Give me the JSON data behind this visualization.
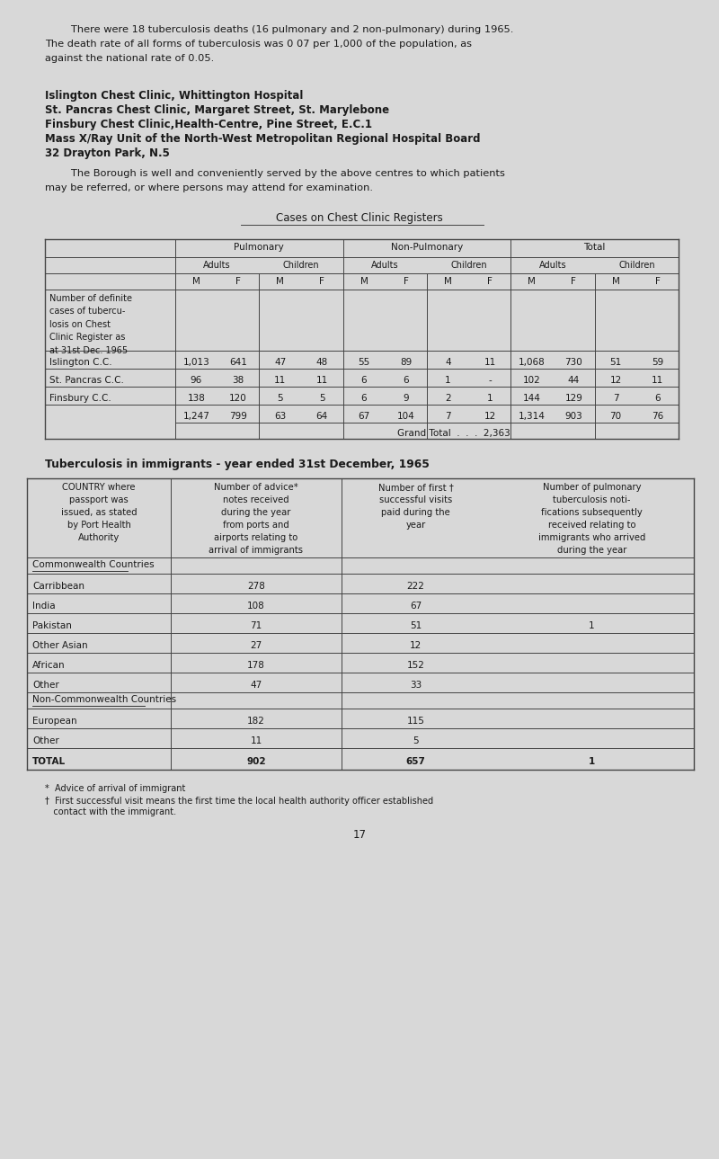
{
  "bg_color": "#d8d8d8",
  "page_bg": "#e0e0e0",
  "text_color": "#1a1a1a",
  "intro_indent": "        There were 18 tuberculosis deaths (16 pulmonary and 2 non-pulmonary) during 1965.",
  "intro_line2": "The death rate of all forms of tuberculosis was 0 07 per 1,000 of the population, as",
  "intro_line3": "against the national rate of 0.05.",
  "bold_lines": [
    "Islington Chest Clinic, Whittington Hospital",
    "St. Pancras Chest Clinic, Margaret Street, St. Marylebone",
    "Finsbury Chest Clinic,Health-Centre, Pine Street, E.C.1",
    "Mass X/Ray Unit of the North-West Metropolitan Regional Hospital Board",
    "32 Drayton Park, N.5"
  ],
  "para_indent": "        The Borough is well and conveniently served by the above centres to which patients",
  "para_line2": "may be referred, or where persons may attend for examination.",
  "table1_title": "Cases on Chest Clinic Registers",
  "table1_row_label": "Number of definite\ncases of tubercu-\nlosis on Chest\nClinic Register as\nat 31st Dec. 1965",
  "table1_rows": [
    [
      "Islington C.C.",
      "1,013",
      "641",
      "47",
      "48",
      "55",
      "89",
      "4",
      "11",
      "1,068",
      "730",
      "51",
      "59"
    ],
    [
      "St. Pancras C.C.",
      "96",
      "38",
      "11",
      "11",
      "6",
      "6",
      "1",
      "-",
      "102",
      "44",
      "12",
      "11"
    ],
    [
      "Finsbury C.C.",
      "138",
      "120",
      "5",
      "5",
      "6",
      "9",
      "2",
      "1",
      "144",
      "129",
      "7",
      "6"
    ]
  ],
  "table1_totals": [
    "1,247",
    "799",
    "63",
    "64",
    "67",
    "104",
    "7",
    "12",
    "1,314",
    "903",
    "70",
    "76"
  ],
  "table1_grand_total": "Grand Total  .  .  .  2,363",
  "table2_title": "Tuberculosis in immigrants - year ended 31st December, 1965",
  "table2_col_headers": [
    "COUNTRY where\npassport was\nissued, as stated\nby Port Health\nAuthority",
    "Number of advice*\nnotes received\nduring the year\nfrom ports and\nairports relating to\narrival of immigrants",
    "Number of first †\nsuccessful visits\npaid during the\nyear",
    "Number of pulmonary\ntuberculosis noti-\nfications subsequently\nreceived relating to\nimmigrants who arrived\nduring the year"
  ],
  "table2_section1": "Commonwealth Countries",
  "table2_rows1": [
    [
      "Carribbean",
      "278",
      "222",
      ""
    ],
    [
      "India",
      "108",
      "67",
      ""
    ],
    [
      "Pakistan",
      "71",
      "51",
      "1"
    ],
    [
      "Other Asian",
      "27",
      "12",
      ""
    ],
    [
      "African",
      "178",
      "152",
      ""
    ],
    [
      "Other",
      "47",
      "33",
      ""
    ]
  ],
  "table2_section2": "Non-Commonwealth Countries",
  "table2_rows2": [
    [
      "European",
      "182",
      "115",
      ""
    ],
    [
      "Other",
      "11",
      "5",
      ""
    ]
  ],
  "table2_total_row": [
    "TOTAL",
    "902",
    "657",
    "1"
  ],
  "footnote1": "*  Advice of arrival of immigrant",
  "footnote2": "†  First successful visit means the first time the local health authority officer established",
  "footnote3": "   contact with the immigrant.",
  "page_number": "17"
}
